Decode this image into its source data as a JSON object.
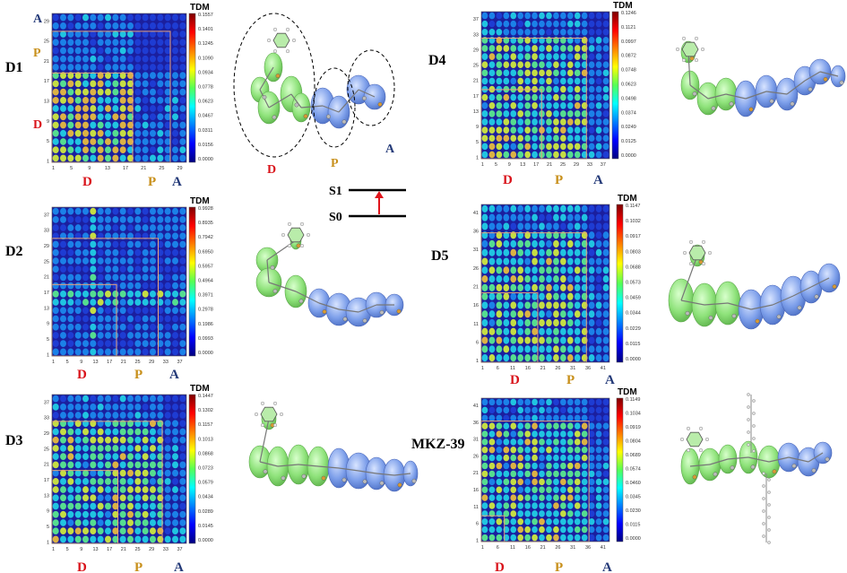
{
  "panels": [
    {
      "id": "D1",
      "name": "D1",
      "ticks": [
        "1",
        "5",
        "9",
        "13",
        "17",
        "21",
        "25",
        "29"
      ],
      "cb": [
        "0.1557",
        "0.1401",
        "0.1245",
        "0.1090",
        "0.0934",
        "0.0778",
        "0.0623",
        "0.0467",
        "0.0311",
        "0.0156",
        "0.0000"
      ],
      "d_left": "D",
      "p_left": "P",
      "a_left": "A"
    },
    {
      "id": "D2",
      "name": "D2",
      "ticks": [
        "1",
        "5",
        "9",
        "13",
        "17",
        "21",
        "25",
        "29",
        "33",
        "37"
      ],
      "cb": [
        "0.9928",
        "0.8935",
        "0.7942",
        "0.6950",
        "0.5957",
        "0.4964",
        "0.3971",
        "0.2978",
        "0.1986",
        "0.0993",
        "0.0000"
      ]
    },
    {
      "id": "D3",
      "name": "D3",
      "ticks": [
        "1",
        "5",
        "9",
        "13",
        "17",
        "21",
        "25",
        "29",
        "33",
        "37"
      ],
      "cb": [
        "0.1447",
        "0.1302",
        "0.1157",
        "0.1013",
        "0.0868",
        "0.0723",
        "0.0579",
        "0.0434",
        "0.0289",
        "0.0145",
        "0.0000"
      ]
    },
    {
      "id": "D4",
      "name": "D4",
      "ticks": [
        "1",
        "5",
        "9",
        "13",
        "17",
        "21",
        "25",
        "29",
        "33",
        "37"
      ],
      "cb": [
        "0.1246",
        "0.1121",
        "0.0997",
        "0.0872",
        "0.0748",
        "0.0623",
        "0.0498",
        "0.0374",
        "0.0249",
        "0.0125",
        "0.0000"
      ]
    },
    {
      "id": "D5",
      "name": "D5",
      "ticks": [
        "1",
        "6",
        "11",
        "16",
        "21",
        "26",
        "31",
        "36",
        "41"
      ],
      "cb": [
        "0.1147",
        "0.1032",
        "0.0917",
        "0.0803",
        "0.0688",
        "0.0573",
        "0.0459",
        "0.0344",
        "0.0229",
        "0.0115",
        "0.0000"
      ]
    },
    {
      "id": "MKZ",
      "name": "MKZ-39",
      "ticks": [
        "1",
        "6",
        "11",
        "16",
        "21",
        "26",
        "31",
        "36",
        "41"
      ],
      "cb": [
        "0.1149",
        "0.1034",
        "0.0919",
        "0.0804",
        "0.0689",
        "0.0574",
        "0.0460",
        "0.0345",
        "0.0230",
        "0.0115",
        "0.0000"
      ]
    }
  ],
  "tdm_label": "TDM",
  "axis_labels": {
    "d": "D",
    "p": "P",
    "a": "A"
  },
  "molecule_labels": {
    "d": "D",
    "p": "P",
    "a": "A"
  },
  "energy": {
    "s1": "S1",
    "s0": "S0"
  },
  "colors": {
    "d": "#d9141b",
    "p": "#c8901c",
    "a": "#243a78",
    "box": "#e8a27a",
    "hole": "#8ee27a",
    "electron": "#6f93e6"
  }
}
